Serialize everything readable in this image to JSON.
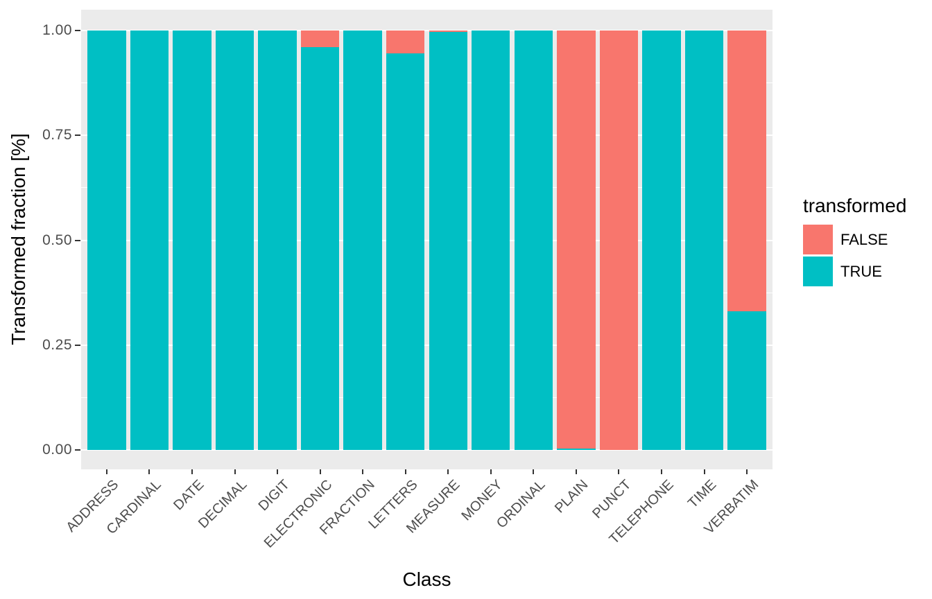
{
  "figure": {
    "background": "#FFFFFF",
    "panel_background": "#EBEBEB",
    "grid_color": "#FFFFFF",
    "tick_mark_color": "#333333",
    "tick_label_color": "#4D4D4D",
    "axis_title_color": "#000000"
  },
  "chart_data": {
    "type": "bar",
    "stacked": true,
    "title": "",
    "xlabel": "Class",
    "ylabel": "Transformed fraction [%]",
    "categories": [
      "ADDRESS",
      "CARDINAL",
      "DATE",
      "DECIMAL",
      "DIGIT",
      "ELECTRONIC",
      "FRACTION",
      "LETTERS",
      "MEASURE",
      "MONEY",
      "ORDINAL",
      "PLAIN",
      "PUNCT",
      "TELEPHONE",
      "TIME",
      "VERBATIM"
    ],
    "series": [
      {
        "name": "FALSE",
        "color": "#F8766D",
        "values": [
          0,
          0,
          0,
          0,
          0,
          0.04,
          0,
          0.055,
          0.003,
          0,
          0,
          0.996,
          1.0,
          0,
          0,
          0.67
        ]
      },
      {
        "name": "TRUE",
        "color": "#00BFC4",
        "values": [
          1.0,
          1.0,
          1.0,
          1.0,
          1.0,
          0.96,
          1.0,
          0.945,
          0.997,
          1.0,
          1.0,
          0.004,
          0.0,
          1.0,
          1.0,
          0.33
        ]
      }
    ],
    "ylim": [
      0,
      1
    ],
    "y_ticks": [
      {
        "value": 0.0,
        "label": "0.00"
      },
      {
        "value": 0.25,
        "label": "0.25"
      },
      {
        "value": 0.5,
        "label": "0.50"
      },
      {
        "value": 0.75,
        "label": "0.75"
      },
      {
        "value": 1.0,
        "label": "1.00"
      }
    ],
    "y_minor_ticks": [
      0.125,
      0.375,
      0.625,
      0.875
    ],
    "grid": true,
    "legend": {
      "title": "transformed",
      "position": "right",
      "entries": [
        {
          "label": "FALSE",
          "color": "#F8766D"
        },
        {
          "label": "TRUE",
          "color": "#00BFC4"
        }
      ]
    }
  }
}
